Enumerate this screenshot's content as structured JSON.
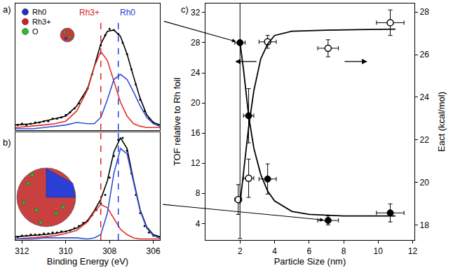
{
  "chart_data": [
    {
      "type": "line",
      "title": "a)",
      "xlim": [
        312.3,
        305.7
      ],
      "ylim": [
        0,
        1
      ],
      "grid": false,
      "tick_labels": false,
      "series": [
        {
          "type": "scatter",
          "marker": "dot",
          "color": "#000000",
          "x": [
            312.2,
            312.0,
            311.8,
            311.6,
            311.4,
            311.2,
            311.0,
            310.8,
            310.6,
            310.4,
            310.2,
            310.0,
            309.8,
            309.6,
            309.4,
            309.2,
            309.0,
            308.8,
            308.6,
            308.4,
            308.2,
            308.0,
            307.8,
            307.6,
            307.4,
            307.2,
            307.0,
            306.8,
            306.6,
            306.4,
            306.2,
            306.0,
            305.8
          ],
          "values": [
            0.04,
            0.05,
            0.04,
            0.05,
            0.06,
            0.06,
            0.07,
            0.07,
            0.09,
            0.09,
            0.1,
            0.12,
            0.14,
            0.17,
            0.21,
            0.26,
            0.33,
            0.44,
            0.55,
            0.67,
            0.75,
            0.8,
            0.79,
            0.76,
            0.69,
            0.6,
            0.48,
            0.36,
            0.24,
            0.15,
            0.09,
            0.06,
            0.04
          ]
        },
        {
          "type": "line",
          "line_style": "solid",
          "color": "#000000",
          "x": [
            312.3,
            311.5,
            311,
            310.5,
            310,
            309.5,
            309,
            308.7,
            308.4,
            308.1,
            307.8,
            307.5,
            307.2,
            306.9,
            306.6,
            306.3,
            306,
            305.7
          ],
          "values": [
            0.04,
            0.05,
            0.07,
            0.09,
            0.11,
            0.19,
            0.33,
            0.5,
            0.68,
            0.78,
            0.79,
            0.74,
            0.6,
            0.42,
            0.25,
            0.12,
            0.06,
            0.04
          ]
        },
        {
          "type": "line",
          "line_style": "solid",
          "color": "#e0302a",
          "x": [
            312.3,
            311.5,
            311,
            310.5,
            310,
            309.5,
            309,
            308.7,
            308.4,
            308.1,
            307.8,
            307.5,
            307.2,
            306.9,
            306.6,
            306.3,
            306,
            305.7
          ],
          "values": [
            0.02,
            0.03,
            0.04,
            0.05,
            0.07,
            0.15,
            0.32,
            0.5,
            0.62,
            0.55,
            0.38,
            0.22,
            0.11,
            0.05,
            0.03,
            0.02,
            0.02,
            0.02
          ]
        },
        {
          "type": "line",
          "line_style": "solid",
          "color": "#3050d8",
          "x": [
            312.3,
            311.5,
            311,
            310.5,
            310,
            309.5,
            309,
            308.7,
            308.4,
            308.1,
            307.8,
            307.5,
            307.2,
            306.9,
            306.6,
            306.3,
            306,
            305.7
          ],
          "values": [
            0.01,
            0.01,
            0.02,
            0.03,
            0.04,
            0.06,
            0.05,
            0.05,
            0.1,
            0.24,
            0.4,
            0.44,
            0.4,
            0.3,
            0.19,
            0.1,
            0.05,
            0.03
          ]
        }
      ],
      "reference_lines": [
        {
          "x": 308.4,
          "label": "Rh3+",
          "color": "#e02020",
          "line_style": "dashed"
        },
        {
          "x": 307.6,
          "label": "Rh0",
          "color": "#2040e0",
          "line_style": "dashed"
        }
      ],
      "key": [
        {
          "text": "Rh0",
          "color": "#1c2fd0"
        },
        {
          "text": "Rh3+",
          "color": "#d42020"
        },
        {
          "text": "O",
          "color": "#28c028"
        }
      ]
    },
    {
      "type": "line",
      "title": "b)",
      "xlabel": "Binding Energy (eV)",
      "xlim": [
        312.3,
        305.7
      ],
      "xticks": [
        312,
        310,
        308,
        306
      ],
      "ylim": [
        0,
        1
      ],
      "grid": false,
      "tick_labels": "x",
      "series": [
        {
          "type": "scatter",
          "marker": "dot",
          "color": "#000000",
          "x": [
            312.2,
            312.0,
            311.8,
            311.6,
            311.4,
            311.2,
            311.0,
            310.8,
            310.6,
            310.4,
            310.2,
            310.0,
            309.8,
            309.6,
            309.4,
            309.2,
            309.0,
            308.8,
            308.6,
            308.4,
            308.2,
            308.0,
            307.8,
            307.6,
            307.4,
            307.2,
            307.0,
            306.8,
            306.6,
            306.4,
            306.2,
            306.0,
            305.8
          ],
          "values": [
            0.03,
            0.04,
            0.04,
            0.05,
            0.05,
            0.05,
            0.06,
            0.06,
            0.07,
            0.07,
            0.08,
            0.08,
            0.09,
            0.11,
            0.13,
            0.16,
            0.18,
            0.23,
            0.28,
            0.34,
            0.42,
            0.58,
            0.78,
            0.93,
            0.95,
            0.83,
            0.62,
            0.42,
            0.25,
            0.13,
            0.07,
            0.04,
            0.03
          ]
        },
        {
          "type": "line",
          "line_style": "solid",
          "color": "#000000",
          "x": [
            312.3,
            311.5,
            311,
            310.5,
            310,
            309.5,
            309,
            308.7,
            308.4,
            308.1,
            307.8,
            307.5,
            307.2,
            306.9,
            306.6,
            306.3,
            306,
            305.7
          ],
          "values": [
            0.03,
            0.04,
            0.05,
            0.06,
            0.08,
            0.11,
            0.18,
            0.27,
            0.38,
            0.55,
            0.82,
            0.95,
            0.85,
            0.55,
            0.28,
            0.12,
            0.05,
            0.03
          ]
        },
        {
          "type": "line",
          "line_style": "solid",
          "color": "#e0302a",
          "x": [
            312.3,
            311.5,
            311,
            310.5,
            310,
            309.5,
            309,
            308.7,
            308.4,
            308.1,
            307.8,
            307.5,
            307.2,
            306.9,
            306.6,
            306.3,
            306,
            305.7
          ],
          "values": [
            0.01,
            0.02,
            0.03,
            0.04,
            0.06,
            0.09,
            0.17,
            0.26,
            0.33,
            0.3,
            0.2,
            0.1,
            0.05,
            0.02,
            0.01,
            0.01,
            0.01,
            0.01
          ]
        },
        {
          "type": "line",
          "line_style": "solid",
          "color": "#3050d8",
          "x": [
            312.3,
            311.5,
            311,
            310.5,
            310,
            309.5,
            309,
            308.7,
            308.4,
            308.1,
            307.8,
            307.5,
            307.2,
            306.9,
            306.6,
            306.3,
            306,
            305.7
          ],
          "values": [
            0.01,
            0.01,
            0.02,
            0.02,
            0.02,
            0.02,
            0.01,
            0.02,
            0.05,
            0.25,
            0.62,
            0.85,
            0.8,
            0.53,
            0.27,
            0.11,
            0.04,
            0.02
          ]
        }
      ],
      "reference_lines": [
        {
          "x": 308.4,
          "color": "#e02020",
          "line_style": "dashed"
        },
        {
          "x": 307.6,
          "color": "#2040e0",
          "line_style": "dashed"
        }
      ]
    },
    {
      "type": "scatter",
      "title": "c)",
      "xlabel": "Particle Size (nm)",
      "ylabel": "TOF relative to Rh foil",
      "y2label": "Eact (kcal/mol)",
      "xlim": [
        0,
        12.1
      ],
      "xticks": [
        2,
        4,
        6,
        8,
        10,
        12
      ],
      "ylim": [
        1.8,
        33.2
      ],
      "yticks": [
        4,
        8,
        12,
        16,
        20,
        24,
        28,
        32
      ],
      "y2lim": [
        17.3,
        28.4
      ],
      "y2ticks": [
        18,
        20,
        22,
        24,
        26,
        28
      ],
      "grid": false,
      "series": [
        {
          "type": "scatter",
          "marker": "filled",
          "color": "#000000",
          "axis": "y",
          "x": [
            2.0,
            2.5,
            3.6,
            7.1,
            10.7
          ],
          "values": [
            28,
            18.3,
            9.9,
            4.4,
            5.4
          ],
          "x_errors": [
            0.3,
            0.3,
            0.5,
            0.6,
            0.8
          ],
          "y_errors": [
            26,
            3.6,
            2.0,
            0.6,
            1.2
          ]
        },
        {
          "type": "line",
          "line_style": "solid",
          "color": "#000000",
          "axis": "y",
          "x": [
            2,
            2.2,
            2.5,
            2.8,
            3.2,
            3.6,
            4,
            5,
            6,
            8,
            11
          ],
          "values": [
            28,
            24.5,
            18.3,
            14,
            10.5,
            8.3,
            7,
            5.6,
            5.2,
            5.0,
            5.0
          ]
        },
        {
          "type": "scatter",
          "marker": "open",
          "color": "#000000",
          "axis": "y2",
          "x": [
            1.9,
            2.5,
            3.6,
            7.1,
            10.7
          ],
          "values": [
            19.2,
            20.2,
            26.6,
            26.3,
            27.5
          ],
          "x_errors": [
            0.2,
            0.3,
            0.5,
            0.6,
            0.8
          ],
          "y_errors": [
            0.7,
            0.9,
            0.3,
            0.4,
            0.6
          ]
        },
        {
          "type": "line",
          "line_style": "solid",
          "color": "#000000",
          "axis": "y2",
          "x": [
            2,
            2.2,
            2.5,
            2.8,
            3.2,
            3.6,
            4,
            5,
            7,
            11
          ],
          "values": [
            19.0,
            20.5,
            22.6,
            24.3,
            25.8,
            26.5,
            26.9,
            27.1,
            27.15,
            27.2
          ]
        }
      ]
    }
  ]
}
